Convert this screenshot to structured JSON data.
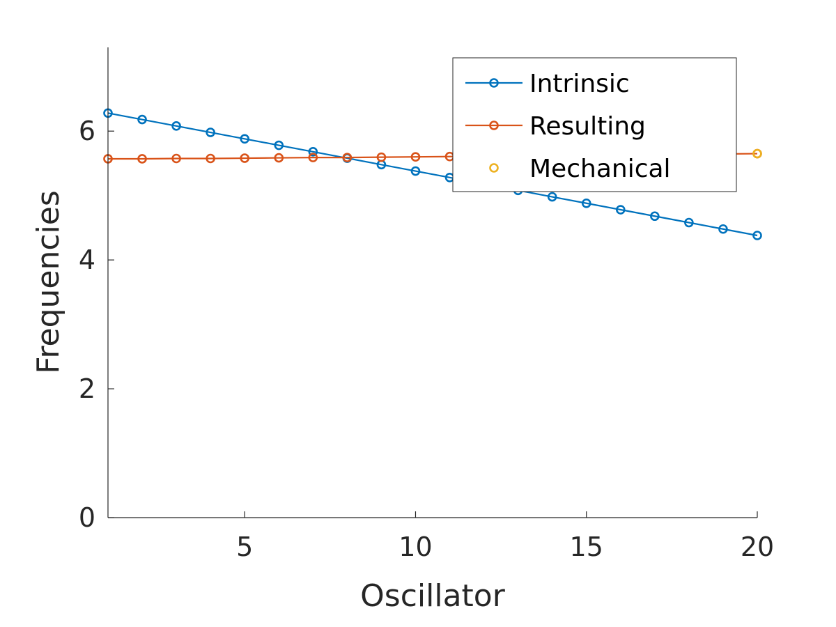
{
  "chart_data": {
    "type": "line",
    "title": "",
    "xlabel": "Oscillator",
    "ylabel": "Frequencies",
    "xlim": [
      1,
      20
    ],
    "ylim": [
      0,
      7.3
    ],
    "xticks": [
      5,
      10,
      15,
      20
    ],
    "yticks": [
      0,
      2,
      4,
      6
    ],
    "grid": false,
    "legend_position": "top-right",
    "series": [
      {
        "name": "Intrinsic",
        "color": "#0072BD",
        "style": "line-with-circle-markers",
        "x": [
          1,
          2,
          3,
          4,
          5,
          6,
          7,
          8,
          9,
          10,
          11,
          12,
          13,
          14,
          15,
          16,
          17,
          18,
          19,
          20
        ],
        "values": [
          6.28,
          6.18,
          6.08,
          5.98,
          5.88,
          5.78,
          5.68,
          5.58,
          5.48,
          5.38,
          5.28,
          5.18,
          5.08,
          4.98,
          4.88,
          4.78,
          4.68,
          4.58,
          4.48,
          4.38
        ]
      },
      {
        "name": "Resulting",
        "color": "#D95319",
        "style": "line-with-circle-markers",
        "x": [
          1,
          2,
          3,
          4,
          5,
          6,
          7,
          8,
          9,
          10,
          11,
          12,
          13,
          14,
          15,
          16,
          17,
          18,
          19,
          20
        ],
        "values": [
          5.57,
          5.57,
          5.575,
          5.575,
          5.58,
          5.585,
          5.59,
          5.59,
          5.595,
          5.6,
          5.605,
          5.61,
          5.615,
          5.62,
          5.625,
          5.63,
          5.635,
          5.64,
          5.645,
          5.65
        ]
      },
      {
        "name": "Mechanical",
        "color": "#EDB120",
        "style": "circle-markers-only",
        "x": [
          20
        ],
        "values": [
          5.65
        ]
      }
    ]
  }
}
